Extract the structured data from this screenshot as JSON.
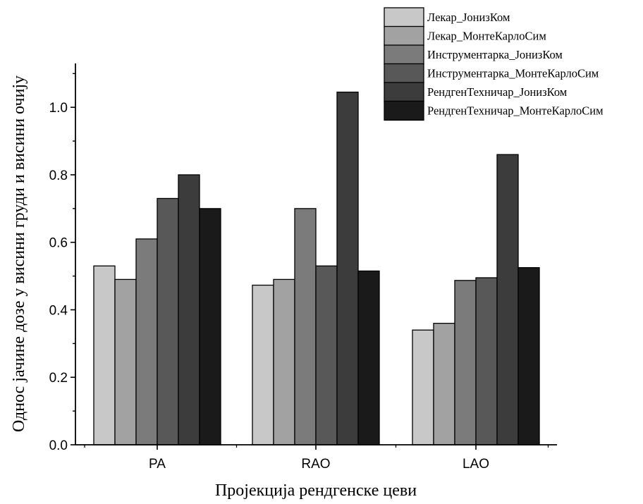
{
  "chart_data": {
    "type": "bar",
    "title": "",
    "xlabel": "Пројекција рендгенске цеви",
    "ylabel": "Однос јачине дозе у висини груди и висини очију",
    "ylim": [
      0,
      1.13
    ],
    "yticks": [
      "0.0",
      "0.2",
      "0.4",
      "0.6",
      "0.8",
      "1.0"
    ],
    "yticks_values": [
      0,
      0.2,
      0.4,
      0.6,
      0.8,
      1.0
    ],
    "minor_ticks": true,
    "grid": false,
    "legend_position": "top-right",
    "categories": [
      "PA",
      "RAO",
      "LAO"
    ],
    "series": [
      {
        "name": "Лекар_ЈонизКом",
        "color": "#c8c8c8",
        "values": [
          0.53,
          0.473,
          0.34
        ]
      },
      {
        "name": "Лекар_МонтеКарлоСим",
        "color": "#a2a2a2",
        "values": [
          0.49,
          0.49,
          0.36
        ]
      },
      {
        "name": "Инструментарка_ЈонизКом",
        "color": "#7b7b7b",
        "values": [
          0.61,
          0.7,
          0.487
        ]
      },
      {
        "name": "Инструментарка_МонтеКарлоСим",
        "color": "#585858",
        "values": [
          0.73,
          0.53,
          0.495
        ]
      },
      {
        "name": "РендгенТехничар_ЈонизКом",
        "color": "#3c3c3c",
        "values": [
          0.8,
          1.045,
          0.86
        ]
      },
      {
        "name": "РендгенТехничар_МонтеКарлоСим",
        "color": "#1a1a1a",
        "values": [
          0.7,
          0.515,
          0.525
        ]
      }
    ]
  }
}
